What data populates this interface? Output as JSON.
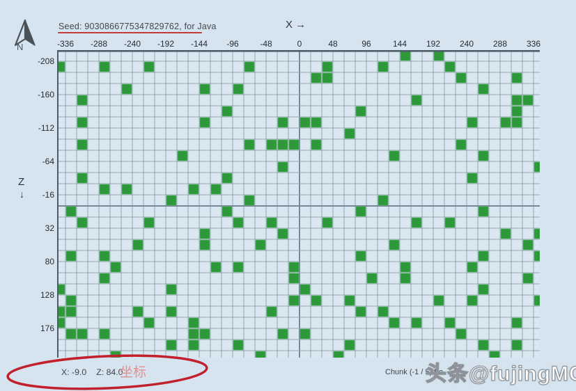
{
  "header": {
    "seed_label": "Seed: 9030866775347829762, for Java",
    "x_axis_title": "X →",
    "z_axis_title": "Z",
    "z_axis_arrow": "↓",
    "compass_n": "N"
  },
  "axes": {
    "x_ticks": [
      "-336",
      "-288",
      "-240",
      "-192",
      "-144",
      "-96",
      "-48",
      "0",
      "48",
      "96",
      "144",
      "192",
      "240",
      "288",
      "336"
    ],
    "z_ticks": [
      "-208",
      "-160",
      "-112",
      "-64",
      "-16",
      "32",
      "80",
      "128",
      "176"
    ]
  },
  "footer": {
    "coord_x": "X: -9.0",
    "coord_z": "Z: 84.0",
    "annotation": "坐标",
    "chunk_info": "Chunk (-1 / 5) fro",
    "watermark": "头条@fujingMC"
  },
  "grid": {
    "cols": 44,
    "rows": 28,
    "cell_size": 16,
    "x_block_start": -352,
    "z_block_start": -224,
    "slime_chunks": [
      [
        31,
        0
      ],
      [
        34,
        0
      ],
      [
        0,
        1
      ],
      [
        4,
        1
      ],
      [
        8,
        1
      ],
      [
        17,
        1
      ],
      [
        24,
        1
      ],
      [
        29,
        1
      ],
      [
        35,
        1
      ],
      [
        23,
        2
      ],
      [
        24,
        2
      ],
      [
        36,
        2
      ],
      [
        41,
        2
      ],
      [
        6,
        3
      ],
      [
        13,
        3
      ],
      [
        16,
        3
      ],
      [
        38,
        3
      ],
      [
        2,
        4
      ],
      [
        32,
        4
      ],
      [
        41,
        4
      ],
      [
        42,
        4
      ],
      [
        15,
        5
      ],
      [
        27,
        5
      ],
      [
        41,
        5
      ],
      [
        2,
        6
      ],
      [
        13,
        6
      ],
      [
        20,
        6
      ],
      [
        22,
        6
      ],
      [
        23,
        6
      ],
      [
        37,
        6
      ],
      [
        40,
        6
      ],
      [
        41,
        6
      ],
      [
        26,
        7
      ],
      [
        2,
        8
      ],
      [
        17,
        8
      ],
      [
        19,
        8
      ],
      [
        20,
        8
      ],
      [
        21,
        8
      ],
      [
        23,
        8
      ],
      [
        36,
        8
      ],
      [
        11,
        9
      ],
      [
        30,
        9
      ],
      [
        38,
        9
      ],
      [
        20,
        10
      ],
      [
        43,
        10
      ],
      [
        2,
        11
      ],
      [
        15,
        11
      ],
      [
        37,
        11
      ],
      [
        4,
        12
      ],
      [
        6,
        12
      ],
      [
        12,
        12
      ],
      [
        14,
        12
      ],
      [
        10,
        13
      ],
      [
        17,
        13
      ],
      [
        29,
        13
      ],
      [
        1,
        14
      ],
      [
        15,
        14
      ],
      [
        27,
        14
      ],
      [
        38,
        14
      ],
      [
        2,
        15
      ],
      [
        8,
        15
      ],
      [
        16,
        15
      ],
      [
        19,
        15
      ],
      [
        24,
        15
      ],
      [
        32,
        15
      ],
      [
        35,
        15
      ],
      [
        13,
        16
      ],
      [
        20,
        16
      ],
      [
        40,
        16
      ],
      [
        43,
        16
      ],
      [
        7,
        17
      ],
      [
        13,
        17
      ],
      [
        18,
        17
      ],
      [
        30,
        17
      ],
      [
        42,
        17
      ],
      [
        1,
        18
      ],
      [
        4,
        18
      ],
      [
        27,
        18
      ],
      [
        38,
        18
      ],
      [
        43,
        18
      ],
      [
        5,
        19
      ],
      [
        14,
        19
      ],
      [
        16,
        19
      ],
      [
        21,
        19
      ],
      [
        31,
        19
      ],
      [
        37,
        19
      ],
      [
        4,
        20
      ],
      [
        21,
        20
      ],
      [
        28,
        20
      ],
      [
        31,
        20
      ],
      [
        42,
        20
      ],
      [
        0,
        21
      ],
      [
        10,
        21
      ],
      [
        22,
        21
      ],
      [
        38,
        21
      ],
      [
        1,
        22
      ],
      [
        21,
        22
      ],
      [
        23,
        22
      ],
      [
        26,
        22
      ],
      [
        34,
        22
      ],
      [
        37,
        22
      ],
      [
        43,
        22
      ],
      [
        0,
        23
      ],
      [
        1,
        23
      ],
      [
        7,
        23
      ],
      [
        10,
        23
      ],
      [
        19,
        23
      ],
      [
        27,
        23
      ],
      [
        29,
        23
      ],
      [
        0,
        24
      ],
      [
        8,
        24
      ],
      [
        12,
        24
      ],
      [
        30,
        24
      ],
      [
        32,
        24
      ],
      [
        35,
        24
      ],
      [
        41,
        24
      ],
      [
        1,
        25
      ],
      [
        2,
        25
      ],
      [
        4,
        25
      ],
      [
        12,
        25
      ],
      [
        13,
        25
      ],
      [
        20,
        25
      ],
      [
        22,
        25
      ],
      [
        36,
        25
      ],
      [
        10,
        26
      ],
      [
        12,
        26
      ],
      [
        16,
        26
      ],
      [
        26,
        26
      ],
      [
        38,
        26
      ],
      [
        41,
        26
      ],
      [
        5,
        27
      ],
      [
        18,
        27
      ],
      [
        25,
        27
      ],
      [
        39,
        27
      ]
    ]
  },
  "colors": {
    "background": "#d6e4ef",
    "cell_background": "#d9e7f0",
    "grid_line": "#95a7b4",
    "axis_line": "#75889b",
    "border_dark": "#4e5c68",
    "slime_green": "#2f9838",
    "seed_underline_red": "#c23b36",
    "ellipse_red": "#c2202c",
    "annotation_pink": "#e2908f"
  }
}
